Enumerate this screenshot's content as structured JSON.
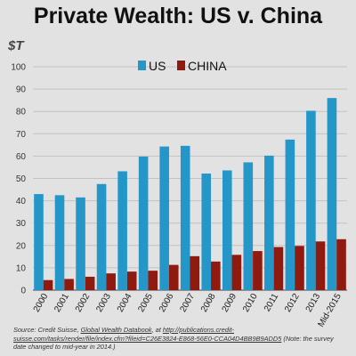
{
  "header": {
    "title": "Private Wealth: US v. China",
    "unit": "$T"
  },
  "colors": {
    "us": "#2596c8",
    "china": "#8e1a10",
    "grid": "#c2c2c2",
    "axis": "#444444",
    "background": "#e2e2e2"
  },
  "chart_data": {
    "type": "bar",
    "title": "Private Wealth: US v. China",
    "ylabel": "$T",
    "xlabel": "",
    "ylim": [
      0,
      100
    ],
    "yticks": [
      0,
      10,
      20,
      30,
      40,
      50,
      60,
      70,
      80,
      90,
      100
    ],
    "grid": true,
    "legend_position": "top-center",
    "categories": [
      "2000",
      "2001",
      "2002",
      "2003",
      "2004",
      "2005",
      "2006",
      "2007",
      "2008",
      "2009",
      "2010",
      "2011",
      "2012",
      "2013",
      "Mid-2015"
    ],
    "series": [
      {
        "name": "US",
        "color": "#2596c8",
        "values": [
          43,
          42.5,
          41.5,
          47.5,
          53.2,
          59.8,
          64.3,
          64.6,
          52.2,
          53.6,
          57.2,
          60.2,
          67.4,
          80.3,
          86
        ]
      },
      {
        "name": "CHINA",
        "color": "#8e1a10",
        "values": [
          4.5,
          5,
          6,
          7.5,
          8.3,
          8.7,
          11.3,
          15.2,
          12.8,
          15.8,
          17.5,
          19.3,
          19.8,
          21.8,
          22.8
        ]
      }
    ]
  },
  "footer": {
    "source_prefix": "Source: Credit Suisse, ",
    "source_book": "Global Wealth Databook",
    "source_mid": ", at ",
    "source_url": "http://publications.credit-suisse.com/tasks/render/file/index.cfm?fileid=C26E3824-E868-56E0-CCA04D4BB9B9ADD5",
    "source_note": " (Note: the survey date changed to mid-year in 2014.)"
  }
}
